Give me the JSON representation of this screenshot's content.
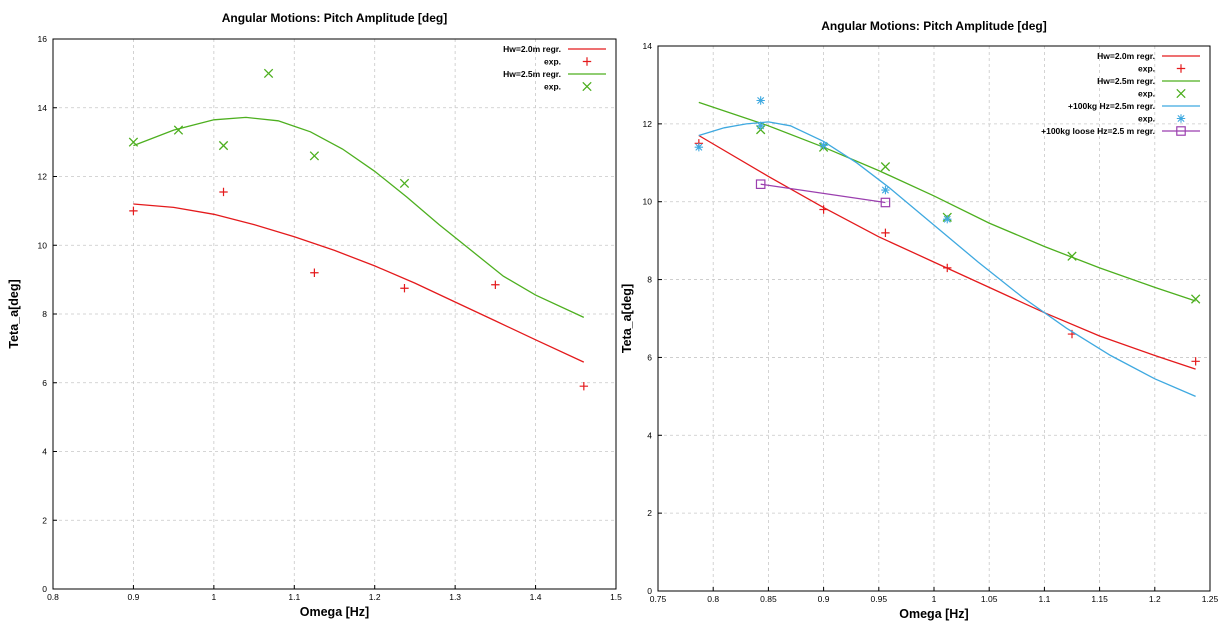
{
  "chart_data": [
    {
      "type": "line",
      "title": "Angular Motions: Pitch Amplitude [deg]",
      "xlabel": "Omega [Hz]",
      "ylabel": "Teta_a[deg]",
      "xlim": [
        0.8,
        1.5
      ],
      "ylim": [
        0,
        16
      ],
      "xticks": [
        "0.8",
        "0.9",
        "1",
        "1.1",
        "1.2",
        "1.3",
        "1.4",
        "1.5"
      ],
      "yticks": [
        "0",
        "2",
        "4",
        "6",
        "8",
        "10",
        "12",
        "14",
        "16"
      ],
      "grid": true,
      "legend_position": "top-right",
      "series": [
        {
          "name": "Hw=2.0m regr.",
          "kind": "line",
          "color": "#e41a1c",
          "x": [
            0.9,
            0.95,
            1.0,
            1.05,
            1.1,
            1.15,
            1.2,
            1.25,
            1.3,
            1.35,
            1.4,
            1.46
          ],
          "y": [
            11.2,
            11.1,
            10.9,
            10.6,
            10.25,
            9.85,
            9.4,
            8.9,
            8.35,
            7.8,
            7.25,
            6.6
          ]
        },
        {
          "name": "exp.",
          "kind": "marker",
          "marker": "plus",
          "color": "#e41a1c",
          "x": [
            0.9,
            1.012,
            1.125,
            1.237,
            1.35,
            1.46
          ],
          "y": [
            11.0,
            11.55,
            9.2,
            8.75,
            8.85,
            5.9
          ]
        },
        {
          "name": "Hw=2.5m regr.",
          "kind": "line",
          "color": "#4daf1f",
          "x": [
            0.9,
            0.95,
            1.0,
            1.04,
            1.08,
            1.12,
            1.16,
            1.2,
            1.24,
            1.28,
            1.32,
            1.36,
            1.4,
            1.46
          ],
          "y": [
            12.9,
            13.35,
            13.65,
            13.72,
            13.62,
            13.3,
            12.8,
            12.15,
            11.4,
            10.6,
            9.85,
            9.1,
            8.55,
            7.9
          ]
        },
        {
          "name": "exp.",
          "kind": "marker",
          "marker": "x",
          "color": "#4daf1f",
          "x": [
            0.9,
            0.956,
            1.012,
            1.068,
            1.125,
            1.237
          ],
          "y": [
            13.0,
            13.35,
            12.9,
            15.0,
            12.6,
            11.8
          ]
        }
      ]
    },
    {
      "type": "line",
      "title": "Angular Motions: Pitch Amplitude [deg]",
      "xlabel": "Omega [Hz]",
      "ylabel": "Teta_a[deg]",
      "xlim": [
        0.75,
        1.25
      ],
      "ylim": [
        0,
        14
      ],
      "xticks": [
        "0.75",
        "0.8",
        "0.85",
        "0.9",
        "0.95",
        "1",
        "1.05",
        "1.1",
        "1.15",
        "1.2",
        "1.25"
      ],
      "yticks": [
        "0",
        "2",
        "4",
        "6",
        "8",
        "10",
        "12",
        "14"
      ],
      "grid": true,
      "legend_position": "top-right",
      "series": [
        {
          "name": "Hw=2.0m regr.",
          "kind": "line",
          "color": "#e41a1c",
          "x": [
            0.787,
            0.85,
            0.9,
            0.95,
            1.0,
            1.05,
            1.1,
            1.15,
            1.2,
            1.237
          ],
          "y": [
            11.7,
            10.65,
            9.85,
            9.1,
            8.45,
            7.8,
            7.15,
            6.55,
            6.05,
            5.7
          ]
        },
        {
          "name": "exp.",
          "kind": "marker",
          "marker": "plus",
          "color": "#e41a1c",
          "x": [
            0.787,
            0.9,
            0.956,
            1.012,
            1.125,
            1.237
          ],
          "y": [
            11.5,
            9.8,
            9.2,
            8.3,
            6.6,
            5.9
          ]
        },
        {
          "name": "Hw=2.5m regr.",
          "kind": "line",
          "color": "#4daf1f",
          "x": [
            0.787,
            0.85,
            0.9,
            0.95,
            1.0,
            1.05,
            1.1,
            1.15,
            1.2,
            1.237
          ],
          "y": [
            12.55,
            11.95,
            11.4,
            10.8,
            10.15,
            9.45,
            8.85,
            8.3,
            7.8,
            7.45
          ]
        },
        {
          "name": "exp.",
          "kind": "marker",
          "marker": "x",
          "color": "#4daf1f",
          "x": [
            0.843,
            0.9,
            0.956,
            1.012,
            1.125,
            1.237
          ],
          "y": [
            11.85,
            11.4,
            10.9,
            9.6,
            8.6,
            7.5
          ]
        },
        {
          "name": "+100kg Hz=2.5m regr.",
          "kind": "line",
          "color": "#3fa9e0",
          "x": [
            0.787,
            0.81,
            0.83,
            0.85,
            0.87,
            0.9,
            0.93,
            0.96,
            1.0,
            1.04,
            1.08,
            1.12,
            1.16,
            1.2,
            1.237
          ],
          "y": [
            11.7,
            11.9,
            12.0,
            12.05,
            11.95,
            11.55,
            11.0,
            10.35,
            9.4,
            8.45,
            7.55,
            6.75,
            6.05,
            5.45,
            5.0
          ]
        },
        {
          "name": "exp.",
          "kind": "marker",
          "marker": "star",
          "color": "#3fa9e0",
          "x": [
            0.787,
            0.843,
            0.843,
            0.9,
            0.956,
            1.012
          ],
          "y": [
            11.4,
            12.6,
            11.95,
            11.45,
            10.3,
            9.55
          ]
        },
        {
          "name": "+100kg loose Hz=2.5 m regr.",
          "kind": "linemarker",
          "marker": "square",
          "color": "#9b3faf",
          "x": [
            0.843,
            0.956
          ],
          "y": [
            10.45,
            9.98
          ]
        }
      ]
    }
  ]
}
